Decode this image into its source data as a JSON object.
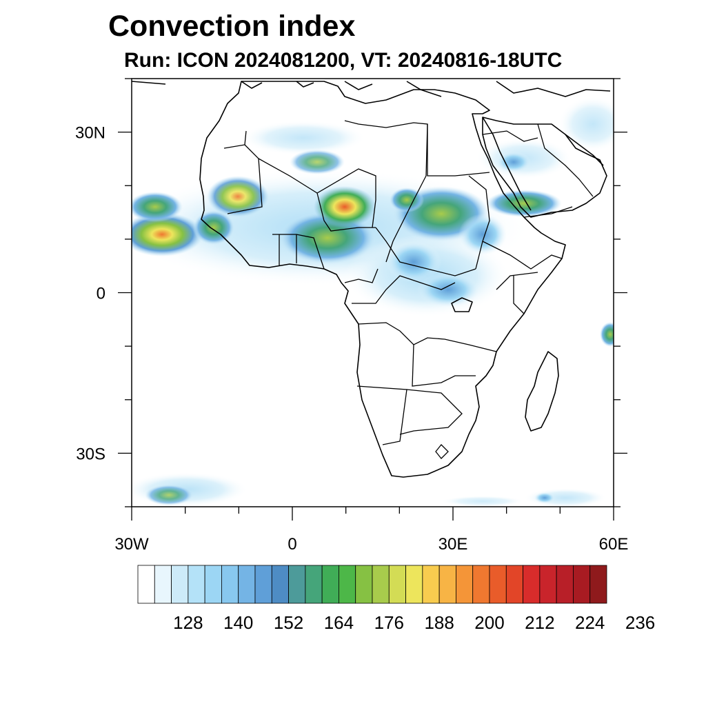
{
  "title": "Convection index",
  "subtitle": "Run: ICON 2024081200,  VT: 20240816-18UTC",
  "map": {
    "lon_range": [
      -30,
      60
    ],
    "lat_range": [
      -40,
      40
    ],
    "lat_ticks": [
      {
        "value": 30,
        "label": "30N"
      },
      {
        "value": 0,
        "label": "0"
      },
      {
        "value": -30,
        "label": "30S"
      }
    ],
    "lon_ticks": [
      {
        "value": -30,
        "label": "30W"
      },
      {
        "value": 0,
        "label": "0"
      },
      {
        "value": 30,
        "label": "30E"
      },
      {
        "value": 60,
        "label": "60E"
      }
    ]
  },
  "colorbar": {
    "colors": [
      "#ffffff",
      "#e8f6fd",
      "#cdebf9",
      "#b4e2f8",
      "#9cd6f4",
      "#88c8ef",
      "#74b4e5",
      "#5f9fd8",
      "#4e8cc4",
      "#4d9b9a",
      "#45a57a",
      "#40ad57",
      "#4db748",
      "#86c143",
      "#a8cb4c",
      "#d3dc55",
      "#ede55c",
      "#f8cc4f",
      "#f7b445",
      "#f49538",
      "#ef7830",
      "#e95c2a",
      "#e24528",
      "#d82c2b",
      "#c9242b",
      "#b81f28",
      "#a81b22",
      "#8f1a1c"
    ],
    "labels": [
      "128",
      "140",
      "152",
      "164",
      "176",
      "188",
      "200",
      "212",
      "224",
      "236"
    ]
  }
}
